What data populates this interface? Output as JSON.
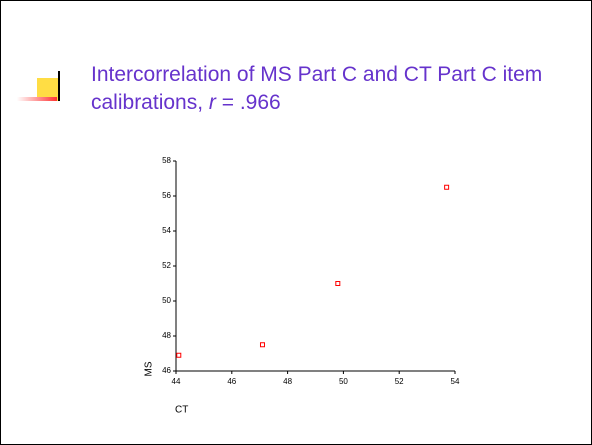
{
  "chart_data": {
    "type": "scatter",
    "title": "Intercorrelation of MS Part C and CT Part C item calibrations,",
    "title_italic": "r",
    "title_end": "= .966",
    "x_label": "CT",
    "y_label": "MS",
    "x": [
      44.1,
      47.1,
      49.8,
      53.7
    ],
    "values": [
      46.9,
      47.5,
      51.0,
      56.5
    ],
    "color": "#ff0000",
    "xlim": [
      44,
      54
    ],
    "xticks": [
      44,
      46,
      48,
      50,
      52,
      54
    ],
    "ylim": [
      46,
      58
    ],
    "yticks": [
      46,
      48,
      50,
      52,
      54,
      56,
      58
    ]
  }
}
